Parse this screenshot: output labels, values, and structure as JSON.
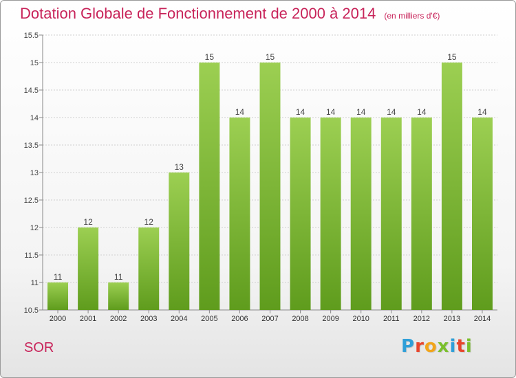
{
  "header": {
    "title": "Dotation Globale de Fonctionnement de 2000 à 2014",
    "subtitle": "(en milliers d'€)"
  },
  "footer": {
    "place": "SOR",
    "logo": {
      "letters": [
        "P",
        "r",
        "o",
        "x",
        "i",
        "t",
        "i"
      ],
      "colors": [
        "#2f9fd8",
        "#e8452c",
        "#f2a51b",
        "#7abf2c",
        "#2f9fd8",
        "#e8452c",
        "#7abf2c"
      ]
    }
  },
  "colors": {
    "bar_light": "#9ccf52",
    "bar_dark": "#5f9c1d",
    "title": "#c8245a",
    "grid": "#cfcfcf"
  },
  "chart_data": {
    "type": "bar",
    "categories": [
      "2000",
      "2001",
      "2002",
      "2003",
      "2004",
      "2005",
      "2006",
      "2007",
      "2008",
      "2009",
      "2010",
      "2011",
      "2012",
      "2013",
      "2014"
    ],
    "values": [
      11,
      12,
      11,
      12,
      13,
      15,
      14,
      15,
      14,
      14,
      14,
      14,
      14,
      15,
      14
    ],
    "data_labels": [
      "11",
      "12",
      "11",
      "12",
      "13",
      "15",
      "14",
      "15",
      "14",
      "14",
      "14",
      "14",
      "14",
      "15",
      "14"
    ],
    "yticks": [
      "10.5",
      "11",
      "11.5",
      "12",
      "12.5",
      "13",
      "13.5",
      "14",
      "14.5",
      "15",
      "15.5"
    ],
    "ylim": [
      10.5,
      15.5
    ],
    "grid": true
  }
}
